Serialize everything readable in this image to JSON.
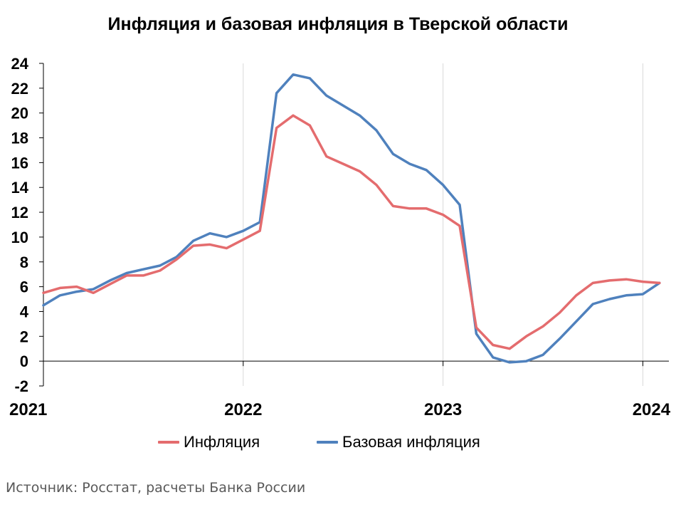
{
  "chart_data": {
    "type": "line",
    "title": "Инфляция и базовая инфляция в Тверской области",
    "source": "Источник: Росстат, расчеты Банка России",
    "xlabel": "",
    "ylabel": "",
    "ylim": [
      -2,
      24
    ],
    "y_ticks": [
      "-2",
      "0",
      "2",
      "4",
      "6",
      "8",
      "10",
      "12",
      "14",
      "16",
      "18",
      "20",
      "22",
      "24"
    ],
    "x_ticks": [
      "2021",
      "2022",
      "2023",
      "2024"
    ],
    "x_range": [
      "2021-01",
      "2024-02"
    ],
    "grid": "vertical gridlines at each year",
    "legend_position": "bottom",
    "x": [
      "2021-01",
      "2021-02",
      "2021-03",
      "2021-04",
      "2021-05",
      "2021-06",
      "2021-07",
      "2021-08",
      "2021-09",
      "2021-10",
      "2021-11",
      "2021-12",
      "2022-01",
      "2022-02",
      "2022-03",
      "2022-04",
      "2022-05",
      "2022-06",
      "2022-07",
      "2022-08",
      "2022-09",
      "2022-10",
      "2022-11",
      "2022-12",
      "2023-01",
      "2023-02",
      "2023-03",
      "2023-04",
      "2023-05",
      "2023-06",
      "2023-07",
      "2023-08",
      "2023-09",
      "2023-10",
      "2023-11",
      "2023-12",
      "2024-01",
      "2024-02"
    ],
    "series": [
      {
        "name": "Инфляция",
        "color": "#E46C6E",
        "values": [
          5.5,
          5.9,
          6.0,
          5.5,
          6.2,
          6.9,
          6.9,
          7.3,
          8.2,
          9.3,
          9.4,
          9.1,
          9.8,
          10.5,
          18.8,
          19.8,
          19.0,
          16.5,
          15.9,
          15.3,
          14.2,
          12.5,
          12.3,
          12.3,
          11.8,
          10.9,
          2.7,
          1.3,
          1.0,
          2.0,
          2.8,
          3.9,
          5.3,
          6.3,
          6.5,
          6.6,
          6.4,
          6.3
        ]
      },
      {
        "name": "Базовая инфляция",
        "color": "#4F81BD",
        "values": [
          4.5,
          5.3,
          5.6,
          5.8,
          6.5,
          7.1,
          7.4,
          7.7,
          8.4,
          9.7,
          10.3,
          10.0,
          10.5,
          11.2,
          21.6,
          23.1,
          22.8,
          21.4,
          20.6,
          19.8,
          18.6,
          16.7,
          15.9,
          15.4,
          14.2,
          12.6,
          2.2,
          0.3,
          -0.1,
          0.0,
          0.5,
          1.8,
          3.2,
          4.6,
          5.0,
          5.3,
          5.4,
          6.3
        ]
      }
    ]
  }
}
